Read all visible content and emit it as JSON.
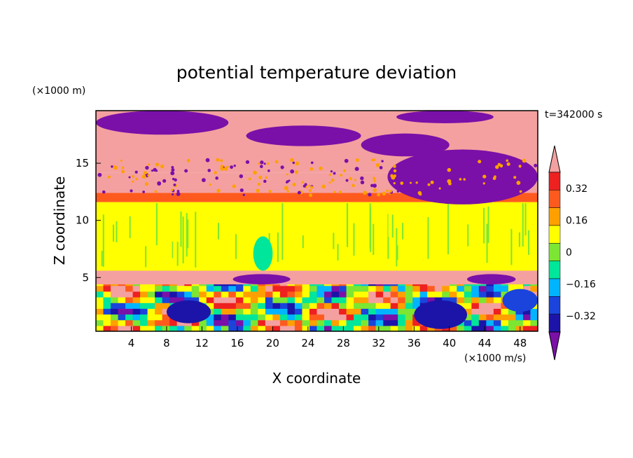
{
  "chart_data": {
    "type": "heatmap",
    "title": "potential temperature deviation",
    "xlabel": "X coordinate",
    "ylabel": "Z coordinate",
    "x_unit": "(×1000 m/s)",
    "y_unit": "(×1000 m)",
    "time_label": "t=342000 s",
    "xlim": [
      0,
      50
    ],
    "ylim": [
      0.3,
      19.6
    ],
    "x_ticks": [
      4,
      8,
      12,
      16,
      20,
      24,
      28,
      32,
      36,
      40,
      44,
      48
    ],
    "y_ticks": [
      5,
      10,
      15
    ],
    "colorbar": {
      "levels": [
        -0.4,
        -0.32,
        -0.24,
        -0.16,
        -0.08,
        0,
        0.08,
        0.16,
        0.24,
        0.32,
        0.4
      ],
      "colors": [
        "#7a10a8",
        "#1c14a8",
        "#1a44dc",
        "#00b4ff",
        "#00e69a",
        "#7ce632",
        "#ffff00",
        "#ffa000",
        "#ff5a1e",
        "#ee2020",
        "#f4a0a0"
      ],
      "labels": [
        {
          "value": 0.32,
          "text": "0.32"
        },
        {
          "value": 0.16,
          "text": "0.16"
        },
        {
          "value": 0,
          "text": "0"
        },
        {
          "value": -0.16,
          "text": "−0.16"
        },
        {
          "value": -0.32,
          "text": "−0.32"
        }
      ],
      "extend": "both"
    },
    "bands": [
      {
        "z0": 0.3,
        "z1": 5.3,
        "field": "turbulent",
        "palette": [
          0,
          1,
          2,
          3,
          4,
          5,
          6,
          7,
          8,
          9,
          10
        ]
      },
      {
        "z0": 4.4,
        "z1": 5.6,
        "field": "warm-layer",
        "value": 0.4
      },
      {
        "z0": 5.6,
        "z1": 11.6,
        "field": "mid",
        "value": 0.02
      },
      {
        "z0": 11.6,
        "z1": 12.4,
        "field": "gradient",
        "value": 0.2
      },
      {
        "z0": 12.4,
        "z1": 14.2,
        "field": "warm",
        "value": 0.36
      },
      {
        "z0": 14.2,
        "z1": 19.6,
        "field": "upper",
        "value": 0.4
      }
    ],
    "features": [
      {
        "name": "cold-cell",
        "x0": 15.5,
        "x1": 22,
        "z0": 4.4,
        "z1": 5.3,
        "value": -0.4
      },
      {
        "name": "cold-cell",
        "x0": 42,
        "x1": 47.5,
        "z0": 4.4,
        "z1": 5.3,
        "value": -0.4
      },
      {
        "name": "cool-plume",
        "x0": 17.8,
        "x1": 20,
        "z0": 5.6,
        "z1": 8.6,
        "value": -0.1
      },
      {
        "name": "cold-patch",
        "x0": 33,
        "x1": 50,
        "z0": 11.4,
        "z1": 16.2,
        "value": -0.4
      },
      {
        "name": "cold-patch",
        "x0": 0,
        "x1": 15,
        "z0": 17.5,
        "z1": 19.6,
        "value": -0.4
      },
      {
        "name": "cold-patch",
        "x0": 17,
        "x1": 30,
        "z0": 16.5,
        "z1": 18.3,
        "value": -0.4
      },
      {
        "name": "cold-patch",
        "x0": 30,
        "x1": 40,
        "z0": 15.6,
        "z1": 17.6,
        "value": -0.4
      },
      {
        "name": "cold-patch",
        "x0": 34,
        "x1": 45,
        "z0": 18.5,
        "z1": 19.6,
        "value": -0.4
      },
      {
        "name": "cold-patch",
        "x0": 8,
        "x1": 13,
        "z0": 1,
        "z1": 3,
        "value": -0.35
      },
      {
        "name": "cold-patch",
        "x0": 36,
        "x1": 42,
        "z0": 0.5,
        "z1": 3,
        "value": -0.35
      },
      {
        "name": "cold-patch",
        "x0": 46,
        "x1": 50,
        "z0": 2,
        "z1": 4,
        "value": -0.3
      }
    ]
  }
}
